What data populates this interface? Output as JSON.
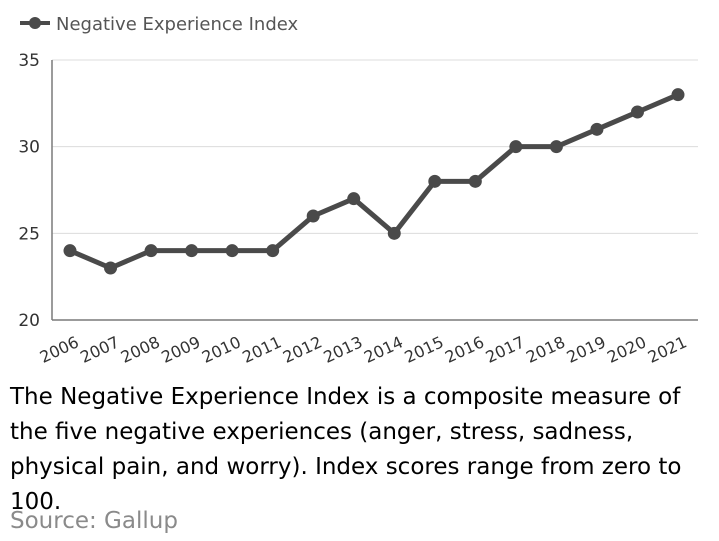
{
  "chart_data": {
    "type": "line",
    "categories": [
      "2006",
      "2007",
      "2008",
      "2009",
      "2010",
      "2011",
      "2012",
      "2013",
      "2014",
      "2015",
      "2016",
      "2017",
      "2018",
      "2019",
      "2020",
      "2021"
    ],
    "series": [
      {
        "name": "Negative Experience Index",
        "values": [
          24,
          23,
          24,
          24,
          24,
          24,
          26,
          27,
          25,
          28,
          28,
          30,
          30,
          31,
          32,
          33
        ]
      }
    ],
    "ylim": [
      20,
      35
    ],
    "yticks": [
      20,
      25,
      30,
      35
    ],
    "grid": true,
    "legend": "top-left",
    "line_color": "#4a4a4a"
  },
  "caption": "The Negative Experience Index is a composite measure of the five negative experiences (anger, stress, sadness, physical pain, and worry). Index scores range from zero to 100.",
  "source": "Source: Gallup"
}
